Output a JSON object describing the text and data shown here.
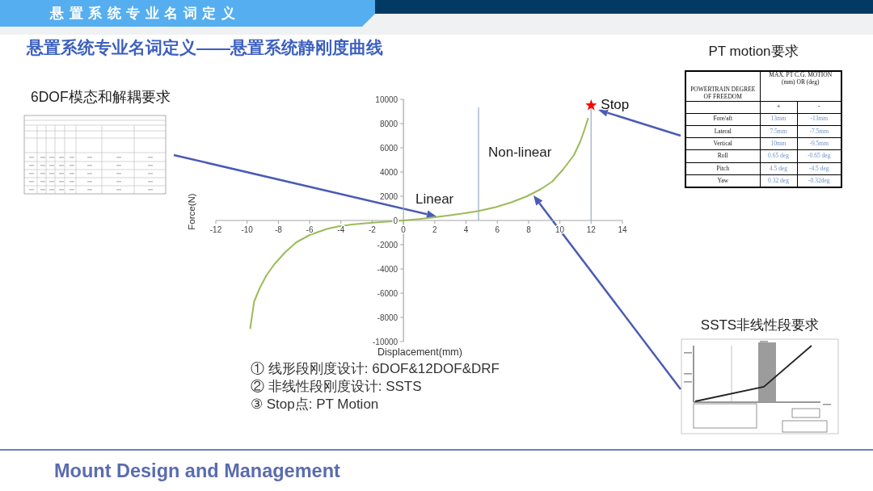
{
  "chart_data": {
    "type": "line",
    "title": "悬置系统专业名词定义——悬置系统静刚度曲线",
    "xlabel": "Displacement(mm)",
    "ylabel": "Force(N)",
    "xlim": [
      -12,
      14
    ],
    "xticks": [
      -12,
      -10,
      -8,
      -6,
      -4,
      -2,
      0,
      2,
      4,
      6,
      8,
      10,
      12,
      14
    ],
    "ylim": [
      -10000,
      10000
    ],
    "yticks": [
      -10000,
      -8000,
      -6000,
      -4000,
      -2000,
      0,
      2000,
      4000,
      6000,
      8000,
      10000
    ],
    "series": [
      {
        "color": "#9bbb59",
        "x": [
          -9.8,
          -9.55,
          -9.2,
          -8.75,
          -8.25,
          -7.55,
          -6.85,
          -6.0,
          -4.9,
          -4.2,
          -3.3,
          -2.0,
          -0.9,
          0,
          1.0,
          2.0,
          3.1,
          4.0,
          4.8,
          5.9,
          6.9,
          7.9,
          8.8,
          9.5,
          10.2,
          10.9,
          11.3,
          11.55,
          11.8
        ],
        "values": [
          -8900,
          -6700,
          -5600,
          -4500,
          -3600,
          -2600,
          -1800,
          -1200,
          -700,
          -500,
          -330,
          -180,
          -90,
          0,
          110,
          270,
          450,
          620,
          780,
          1100,
          1500,
          2000,
          2600,
          3200,
          4200,
          5400,
          6500,
          7400,
          8400
        ]
      },
      {
        "name": "Stop",
        "type": "scatter",
        "marker": "star",
        "color": "#ff0000",
        "x": [
          12
        ],
        "values": [
          9500
        ]
      }
    ],
    "ref_lines": [
      {
        "axis": "x",
        "value": 4.8,
        "color": "#a9bccf"
      },
      {
        "axis": "x",
        "value": 12,
        "color": "#a9bccf"
      }
    ],
    "annotations": [
      "悬置系统专业名词定义",
      "6DOF模态和解耦要求",
      "PT motion要求",
      "SSTS非线性段要求",
      "① 线形段刚度设计: 6DOF&12DOF&DRF",
      "② 非线性段刚度设计: SSTS",
      "③ Stop点: PT Motion",
      "Mount Design and Management",
      "Linear",
      "Non-linear",
      "POWERTRAIN DEGREE OF FREEDOM",
      "MAX. PT C.G. MOTION (mm) OR (deg)",
      "+",
      "-",
      "Fore/aft",
      "13mm",
      "-13mm",
      "Lateral",
      "7.5mm",
      "-7.5mm",
      "Vertical",
      "10mm",
      "-9.5mm",
      "Roll",
      "0.65 deg",
      "-0.65 deg",
      "Pitch",
      "4.5 deg",
      "-4.5 deg",
      "Yaw",
      "0.32 deg",
      "-0.32deg"
    ]
  }
}
